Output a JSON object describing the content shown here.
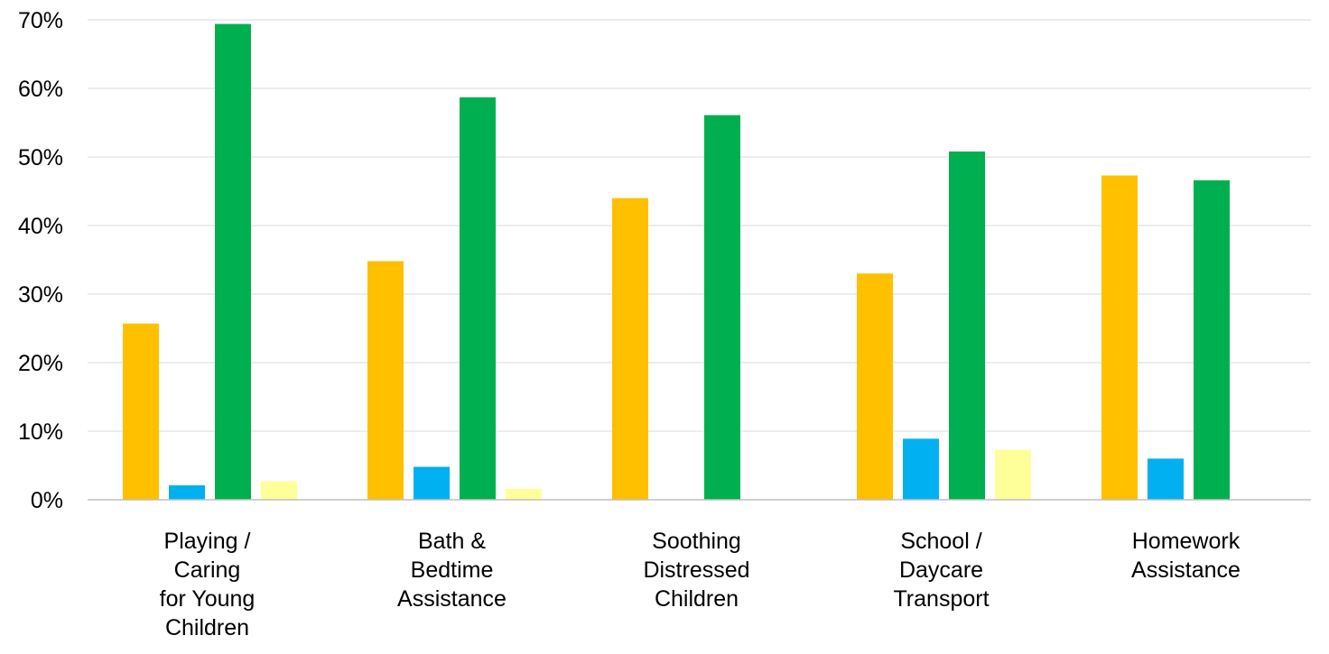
{
  "chart_data": {
    "type": "bar",
    "categories": [
      [
        "Playing /",
        "Caring",
        "for Young",
        "Children"
      ],
      [
        "Bath &",
        "Bedtime",
        "Assistance"
      ],
      [
        "Soothing",
        "Distressed",
        "Children"
      ],
      [
        "School /",
        "Daycare",
        "Transport"
      ],
      [
        "Homework",
        "Assistance"
      ]
    ],
    "series": [
      {
        "color": "#FFC000",
        "values": [
          25.7,
          34.8,
          44.0,
          33.0,
          47.3
        ]
      },
      {
        "color": "#00B0F0",
        "values": [
          2.1,
          4.8,
          0,
          8.9,
          6.0
        ]
      },
      {
        "color": "#00B050",
        "values": [
          69.4,
          58.7,
          56.1,
          50.8,
          46.6
        ]
      },
      {
        "color": "#FFFF99",
        "values": [
          2.7,
          1.6,
          0,
          7.3,
          0
        ]
      }
    ],
    "y_ticks": [
      "0%",
      "10%",
      "20%",
      "30%",
      "40%",
      "50%",
      "60%",
      "70%"
    ],
    "ylim": [
      0,
      70
    ],
    "grid": true,
    "legend": "none"
  }
}
